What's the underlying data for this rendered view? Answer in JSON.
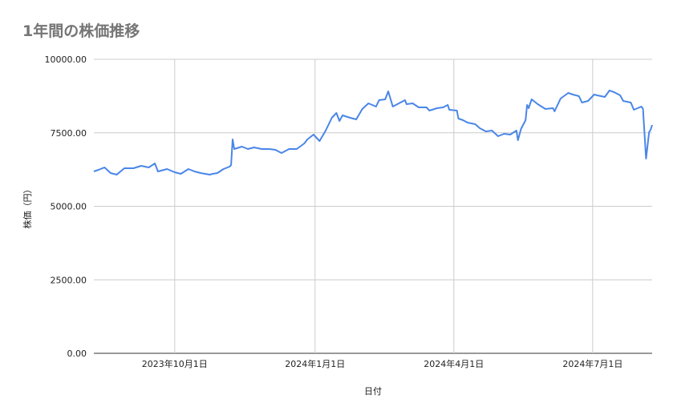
{
  "chart_data": {
    "type": "line",
    "title": "1年間の株価推移",
    "xlabel": "日付",
    "ylabel": "株価（円）",
    "ylim": [
      0,
      10000
    ],
    "xlim": [
      "2023-08-09",
      "2024-08-09"
    ],
    "yticks": [
      "0.00",
      "2500.00",
      "5000.00",
      "7500.00",
      "10000.00"
    ],
    "ytick_values": [
      0,
      2500,
      5000,
      7500,
      10000
    ],
    "xticks": [
      {
        "date": "2023-10-01",
        "label": "2023年10月1日"
      },
      {
        "date": "2024-01-01",
        "label": "2024年1月1日"
      },
      {
        "date": "2024-04-01",
        "label": "2024年4月1日"
      },
      {
        "date": "2024-07-01",
        "label": "2024年7月1日"
      }
    ],
    "grid": true,
    "legend": "none",
    "line_color": "#4a86e8",
    "x": [
      "2023-08-09",
      "2023-08-12",
      "2023-08-16",
      "2023-08-20",
      "2023-08-24",
      "2023-08-29",
      "2023-09-04",
      "2023-09-09",
      "2023-09-14",
      "2023-09-18",
      "2023-09-20",
      "2023-09-26",
      "2023-10-01",
      "2023-10-05",
      "2023-10-10",
      "2023-10-14",
      "2023-10-18",
      "2023-10-24",
      "2023-10-26",
      "2023-10-29",
      "2023-11-02",
      "2023-11-06",
      "2023-11-07",
      "2023-11-08",
      "2023-11-09",
      "2023-11-14",
      "2023-11-18",
      "2023-11-22",
      "2023-11-27",
      "2023-12-02",
      "2023-12-06",
      "2023-12-10",
      "2023-12-15",
      "2023-12-20",
      "2023-12-25",
      "2023-12-27",
      "2023-12-31",
      "2024-01-04",
      "2024-01-08",
      "2024-01-12",
      "2024-01-15",
      "2024-01-17",
      "2024-01-19",
      "2024-01-24",
      "2024-01-28",
      "2024-02-01",
      "2024-02-05",
      "2024-02-10",
      "2024-02-12",
      "2024-02-16",
      "2024-02-18",
      "2024-02-21",
      "2024-02-24",
      "2024-02-29",
      "2024-03-01",
      "2024-03-05",
      "2024-03-09",
      "2024-03-14",
      "2024-03-16",
      "2024-03-21",
      "2024-03-25",
      "2024-03-28",
      "2024-03-29",
      "2024-04-03",
      "2024-04-04",
      "2024-04-07",
      "2024-04-10",
      "2024-04-15",
      "2024-04-18",
      "2024-04-22",
      "2024-04-26",
      "2024-04-30",
      "2024-05-04",
      "2024-05-08",
      "2024-05-12",
      "2024-05-13",
      "2024-05-15",
      "2024-05-18",
      "2024-05-19",
      "2024-05-20",
      "2024-05-22",
      "2024-05-26",
      "2024-05-31",
      "2024-06-05",
      "2024-06-06",
      "2024-06-10",
      "2024-06-15",
      "2024-06-18",
      "2024-06-22",
      "2024-06-24",
      "2024-06-28",
      "2024-07-02",
      "2024-07-04",
      "2024-07-09",
      "2024-07-12",
      "2024-07-15",
      "2024-07-19",
      "2024-07-21",
      "2024-07-26",
      "2024-07-28",
      "2024-08-02",
      "2024-08-03",
      "2024-08-05",
      "2024-08-07",
      "2024-08-08",
      "2024-08-09"
    ],
    "values": [
      6185,
      6240,
      6322,
      6131,
      6076,
      6294,
      6294,
      6376,
      6322,
      6458,
      6185,
      6267,
      6158,
      6104,
      6267,
      6185,
      6131,
      6076,
      6104,
      6131,
      6267,
      6349,
      6403,
      7275,
      6948,
      7030,
      6948,
      7003,
      6948,
      6948,
      6921,
      6812,
      6948,
      6948,
      7139,
      7275,
      7439,
      7221,
      7575,
      8011,
      8174,
      7902,
      8093,
      8011,
      7956,
      8311,
      8501,
      8392,
      8610,
      8638,
      8910,
      8392,
      8474,
      8610,
      8474,
      8501,
      8365,
      8365,
      8256,
      8338,
      8365,
      8447,
      8283,
      8256,
      7984,
      7929,
      7847,
      7793,
      7657,
      7548,
      7575,
      7384,
      7466,
      7439,
      7575,
      7248,
      7629,
      7929,
      8447,
      8338,
      8638,
      8474,
      8311,
      8338,
      8229,
      8665,
      8856,
      8801,
      8747,
      8529,
      8583,
      8801,
      8774,
      8720,
      8937,
      8883,
      8774,
      8583,
      8529,
      8283,
      8392,
      8311,
      6621,
      7521,
      7602,
      7766
    ]
  }
}
